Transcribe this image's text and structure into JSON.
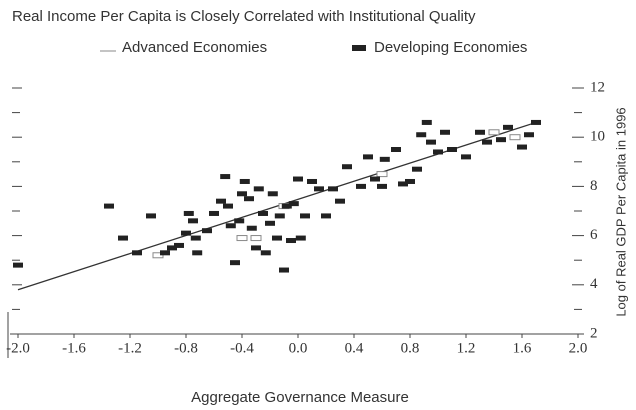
{
  "chart_data": {
    "type": "scatter",
    "title": "Real Income Per Capita is Closely Correlated with Institutional Quality",
    "x_label": "Aggregate Governance Measure",
    "y_label": "Log of Real GDP Per Capita in 1996",
    "xlim": [
      -2.0,
      2.0
    ],
    "ylim": [
      2,
      12
    ],
    "xticks": [
      {
        "value": -2,
        "label": "-2.0"
      },
      -1.6,
      -1.2,
      -0.8,
      -0.4,
      {
        "value": 0,
        "label": "0.0"
      },
      0.4,
      0.8,
      1.2,
      1.6,
      {
        "value": 2,
        "label": "2.0"
      }
    ],
    "yticks": [
      2,
      4,
      6,
      8,
      10,
      12
    ],
    "yminor_ticks": [
      3,
      5,
      7,
      9,
      11
    ],
    "legend": "top",
    "series": [
      {
        "name": "Advanced Economies",
        "color": "#888888",
        "hollow": true,
        "x": [
          -1.0,
          -0.3,
          -0.1,
          1.4,
          1.55,
          0.6,
          -0.4
        ],
        "y": [
          5.2,
          5.9,
          7.2,
          10.2,
          10.0,
          8.5,
          5.9
        ]
      },
      {
        "name": "Developing Economies",
        "color": "#222222",
        "hollow": false,
        "x": [
          -2.0,
          -1.35,
          -1.25,
          -1.15,
          -1.05,
          -0.95,
          -0.9,
          -0.85,
          -0.8,
          -0.78,
          -0.75,
          -0.73,
          -0.72,
          -0.65,
          -0.6,
          -0.55,
          -0.52,
          -0.5,
          -0.48,
          -0.45,
          -0.42,
          -0.4,
          -0.38,
          -0.35,
          -0.33,
          -0.3,
          -0.28,
          -0.25,
          -0.23,
          -0.2,
          -0.18,
          -0.15,
          -0.13,
          -0.1,
          -0.08,
          -0.05,
          -0.03,
          0.0,
          0.02,
          0.05,
          0.1,
          0.15,
          0.2,
          0.25,
          0.3,
          0.35,
          0.45,
          0.5,
          0.55,
          0.6,
          0.62,
          0.7,
          0.75,
          0.8,
          0.85,
          0.88,
          0.92,
          0.95,
          1.0,
          1.05,
          1.1,
          1.2,
          1.3,
          1.35,
          1.45,
          1.5,
          1.6,
          1.65,
          1.7
        ],
        "y": [
          4.8,
          7.2,
          5.9,
          5.3,
          6.8,
          5.3,
          5.5,
          5.6,
          6.1,
          6.9,
          6.6,
          5.9,
          5.3,
          6.2,
          6.9,
          7.4,
          8.4,
          7.2,
          6.4,
          4.9,
          6.6,
          7.7,
          8.2,
          7.5,
          6.3,
          5.5,
          7.9,
          6.9,
          5.3,
          6.5,
          7.7,
          5.9,
          6.8,
          4.6,
          7.2,
          5.8,
          7.3,
          8.3,
          5.9,
          6.8,
          8.2,
          7.9,
          6.8,
          7.9,
          7.4,
          8.8,
          8.0,
          9.2,
          8.3,
          8.0,
          9.1,
          9.5,
          8.1,
          8.2,
          8.7,
          10.1,
          10.6,
          9.8,
          9.4,
          10.2,
          9.5,
          9.2,
          10.2,
          9.8,
          9.9,
          10.4,
          9.6,
          10.1,
          10.6
        ]
      }
    ],
    "trend_line": {
      "x": [
        -2.0,
        1.7
      ],
      "y": [
        3.8,
        10.6
      ]
    }
  }
}
